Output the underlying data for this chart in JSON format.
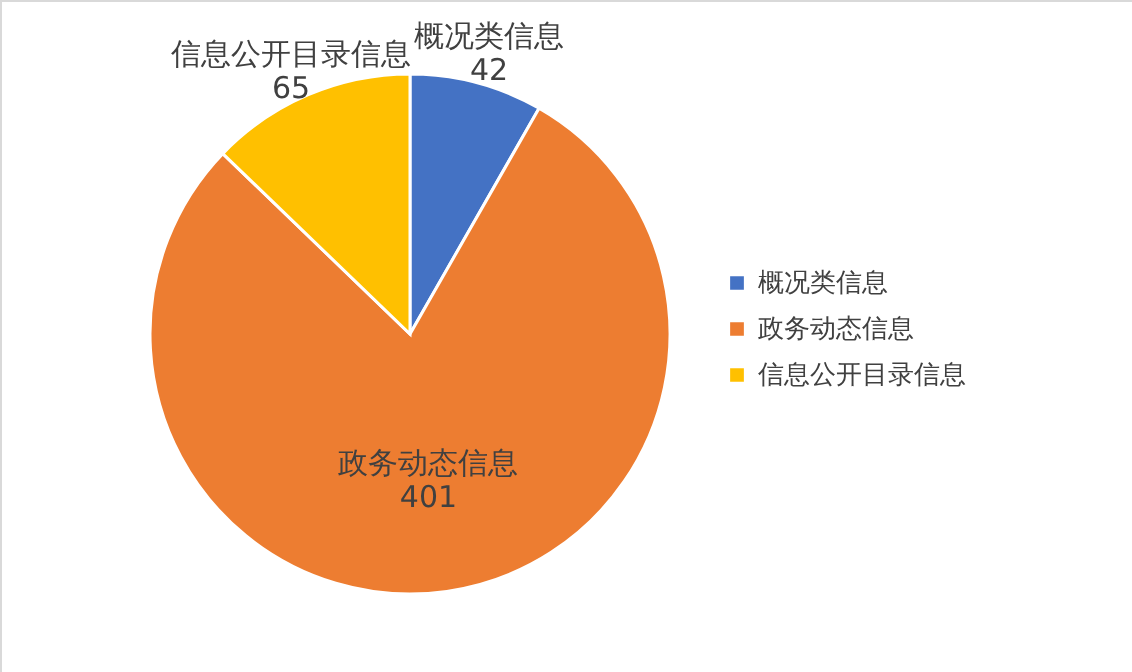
{
  "chart_data": {
    "type": "pie",
    "categories": [
      "概况类信息",
      "政务动态信息",
      "信息公开目录信息"
    ],
    "values": [
      42,
      401,
      65
    ],
    "colors": [
      "#4472c4",
      "#ed7d31",
      "#ffc000"
    ],
    "data_labels": true,
    "legend": "right"
  }
}
